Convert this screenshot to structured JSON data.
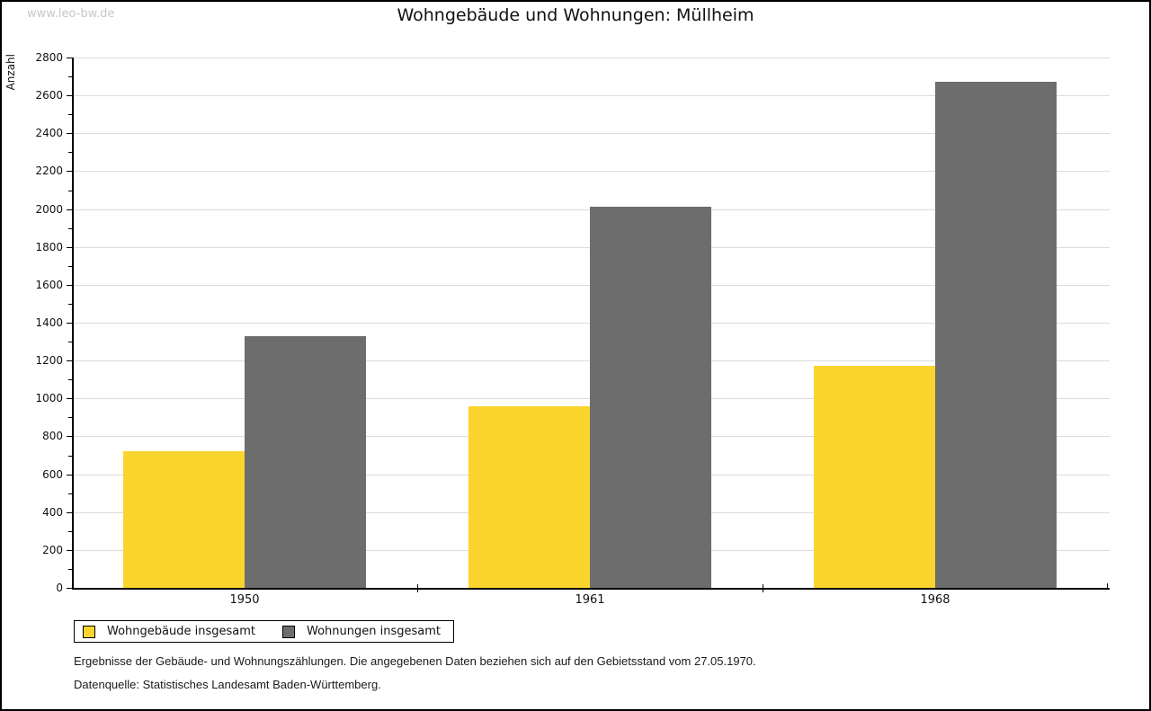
{
  "watermark": "www.leo-bw.de",
  "header": {
    "title": "Wohngebäude und Wohnungen: Müllheim"
  },
  "chart_data": {
    "type": "bar",
    "title": "Wohngebäude und Wohnungen: Müllheim",
    "ylabel": "Anzahl",
    "xlabel": "",
    "categories": [
      "1950",
      "1961",
      "1968"
    ],
    "series": [
      {
        "name": "Wohngebäude insgesamt",
        "color": "#FBD42D",
        "values": [
          720,
          960,
          1170
        ]
      },
      {
        "name": "Wohnungen insgesamt",
        "color": "#6D6D6D",
        "values": [
          1330,
          2010,
          2670
        ]
      }
    ],
    "ylim": [
      0,
      2800
    ],
    "ytick_step": 200,
    "yminor_step": 100,
    "grid": true,
    "legend_position": "bottom-left"
  },
  "footnotes": {
    "line1": "Ergebnisse der Gebäude- und Wohnungszählungen. Die angegebenen Daten beziehen sich auf den Gebietsstand vom 27.05.1970.",
    "line2": "Datenquelle: Statistisches Landesamt Baden-Württemberg."
  },
  "colors": {
    "grid": "#DBDBDB",
    "axis": "#000000",
    "watermark": "#C7C7C7"
  }
}
